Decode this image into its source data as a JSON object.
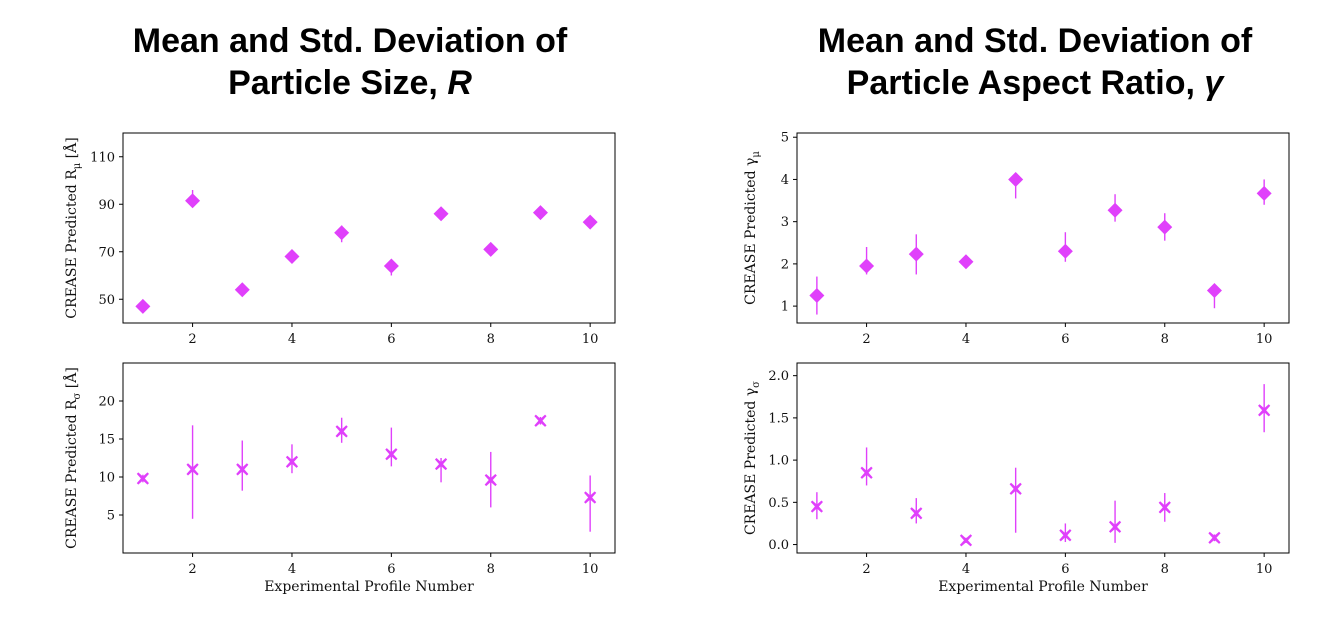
{
  "titles": {
    "left": {
      "line1": "Mean and Std. Deviation of",
      "line2_prefix": "Particle Size, ",
      "line2_symbol": "R"
    },
    "right": {
      "line1": "Mean and Std. Deviation of",
      "line2_prefix": "Particle Aspect Ratio, ",
      "line2_symbol": "γ"
    }
  },
  "colors": {
    "marker": "#e040fb",
    "errorbar": "#e040fb",
    "axis": "#000000"
  },
  "chart_data": [
    {
      "id": "r-mu",
      "type": "scatter",
      "marker": "diamond",
      "ylabel": "CREASE Predicted R",
      "ylabel_sub": "μ",
      "ylabel_unit": " [Å]",
      "xlabel": "",
      "xlim": [
        0.6,
        10.5
      ],
      "ylim": [
        40,
        120
      ],
      "xticks": [
        2,
        4,
        6,
        8,
        10
      ],
      "yticks": [
        50,
        70,
        90,
        110
      ],
      "x": [
        1,
        2,
        3,
        4,
        5,
        6,
        7,
        8,
        9,
        10
      ],
      "y": [
        47,
        91.5,
        54,
        68,
        78,
        64,
        86,
        71,
        86.5,
        82.5
      ],
      "yerr_low": [
        45.5,
        89,
        52.5,
        66.5,
        74,
        60,
        84.5,
        69.5,
        85,
        81
      ],
      "yerr_high": [
        48.5,
        96,
        55.5,
        70,
        81,
        66,
        87.5,
        72.5,
        88,
        84
      ]
    },
    {
      "id": "r-sigma",
      "type": "scatter",
      "marker": "x-filled",
      "ylabel": "CREASE Predicted R",
      "ylabel_sub": "σ",
      "ylabel_unit": " [Å]",
      "xlabel": "Experimental Profile Number",
      "xlim": [
        0.6,
        10.5
      ],
      "ylim": [
        0,
        25
      ],
      "xticks": [
        2,
        4,
        6,
        8,
        10
      ],
      "yticks": [
        5,
        10,
        15,
        20
      ],
      "x": [
        1,
        2,
        3,
        4,
        5,
        6,
        7,
        8,
        9,
        10
      ],
      "y": [
        9.8,
        11,
        11,
        12,
        16,
        13,
        11.7,
        9.6,
        17.4,
        7.3
      ],
      "yerr_low": [
        9.3,
        4.5,
        8.2,
        10.5,
        14.5,
        11.4,
        9.3,
        6,
        16.9,
        2.8
      ],
      "yerr_high": [
        10.3,
        16.8,
        14.8,
        14.3,
        17.8,
        16.5,
        12.5,
        13.3,
        17.9,
        10.2
      ]
    },
    {
      "id": "gamma-mu",
      "type": "scatter",
      "marker": "diamond",
      "ylabel": "CREASE Predicted γ",
      "ylabel_sub": "μ",
      "ylabel_unit": "",
      "xlabel": "",
      "xlim": [
        0.6,
        10.5
      ],
      "ylim": [
        0.6,
        5.1
      ],
      "xticks": [
        2,
        4,
        6,
        8,
        10
      ],
      "yticks": [
        1,
        2,
        3,
        4,
        5
      ],
      "x": [
        1,
        2,
        3,
        4,
        5,
        6,
        7,
        8,
        9,
        10
      ],
      "y": [
        1.25,
        1.95,
        2.23,
        2.05,
        4.0,
        2.3,
        3.27,
        2.87,
        1.37,
        3.67
      ],
      "yerr_low": [
        0.8,
        1.75,
        1.75,
        1.95,
        3.55,
        2.05,
        3.0,
        2.55,
        0.95,
        3.4
      ],
      "yerr_high": [
        1.7,
        2.4,
        2.7,
        2.15,
        4.1,
        2.75,
        3.65,
        3.2,
        1.45,
        4.0
      ]
    },
    {
      "id": "gamma-sigma",
      "type": "scatter",
      "marker": "x-filled",
      "ylabel": "CREASE Predicted γ",
      "ylabel_sub": "σ",
      "ylabel_unit": "",
      "xlabel": "Experimental Profile Number",
      "xlim": [
        0.6,
        10.5
      ],
      "ylim": [
        -0.1,
        2.15
      ],
      "xticks": [
        2,
        4,
        6,
        8,
        10
      ],
      "yticks": [
        0.0,
        0.5,
        1.0,
        1.5,
        2.0
      ],
      "ytick_labels": [
        "0.0",
        "0.5",
        "1.0",
        "1.5",
        "2.0"
      ],
      "x": [
        1,
        2,
        3,
        4,
        5,
        6,
        7,
        8,
        9,
        10
      ],
      "y": [
        0.45,
        0.85,
        0.37,
        0.05,
        0.66,
        0.11,
        0.21,
        0.44,
        0.08,
        1.59
      ],
      "yerr_low": [
        0.3,
        0.7,
        0.25,
        0.02,
        0.14,
        0.03,
        0.02,
        0.27,
        0.04,
        1.33
      ],
      "yerr_high": [
        0.62,
        1.15,
        0.55,
        0.08,
        0.91,
        0.25,
        0.52,
        0.61,
        0.12,
        1.9
      ]
    }
  ]
}
